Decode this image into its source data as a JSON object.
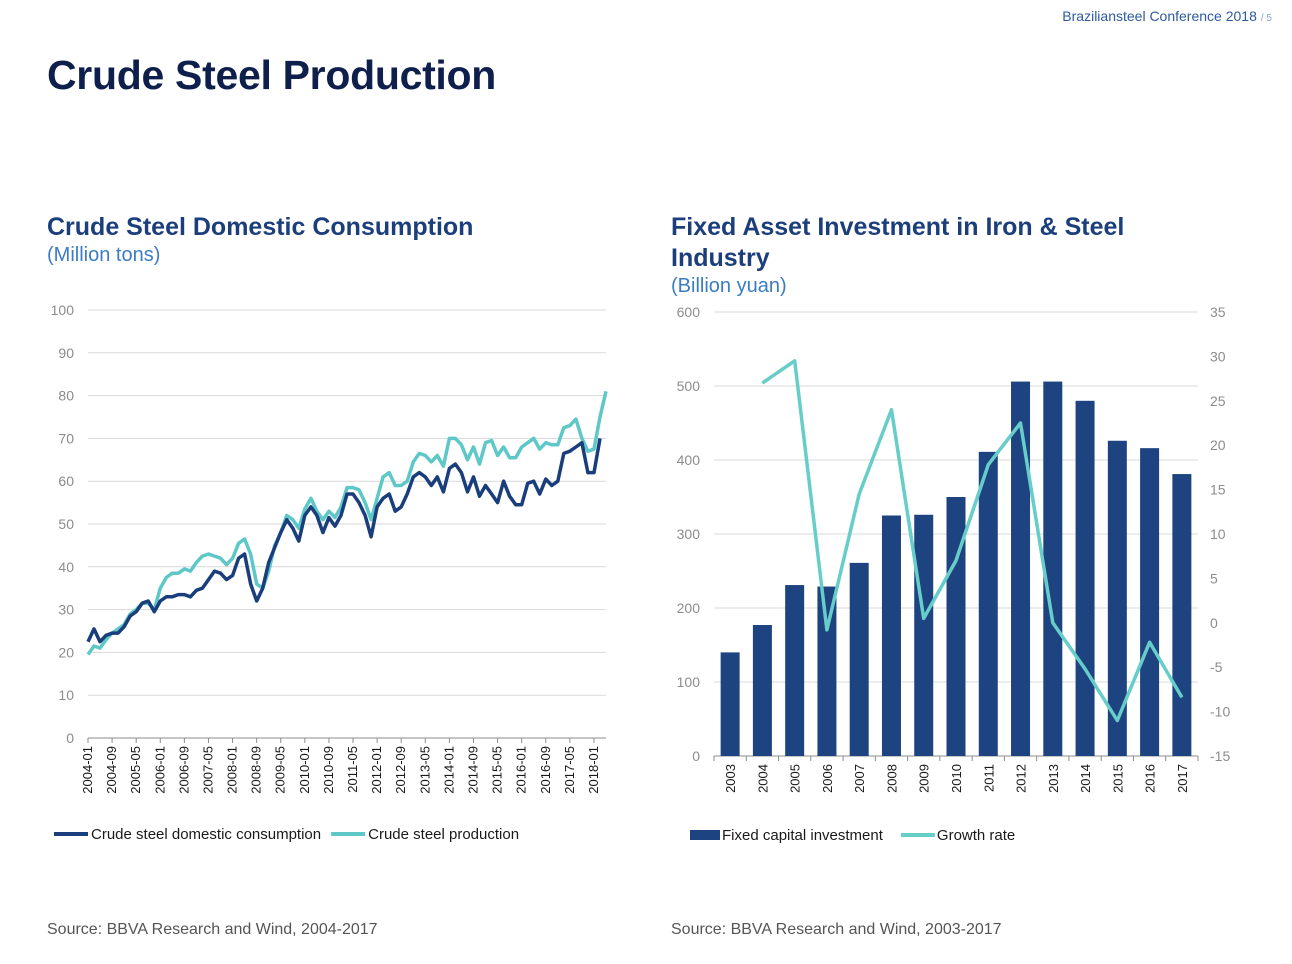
{
  "header": {
    "conference": "Braziliansteel Conference 2018",
    "page_mark": "/ 5"
  },
  "page_title": "Crude Steel Production",
  "chart_data": [
    {
      "type": "line",
      "title": "Crude Steel Domestic Consumption",
      "subtitle": "(Million tons)",
      "source": "Source: BBVA Research and Wind, 2004-2017",
      "ylim": [
        0,
        100
      ],
      "yticks": [
        0,
        10,
        20,
        30,
        40,
        50,
        60,
        70,
        80,
        90,
        100
      ],
      "xlim": [
        "2004-01",
        "2018-05"
      ],
      "xtick_labels": [
        "2004-01",
        "2004-09",
        "2005-05",
        "2006-01",
        "2006-09",
        "2007-05",
        "2008-01",
        "2008-09",
        "2009-05",
        "2010-01",
        "2010-09",
        "2011-05",
        "2012-01",
        "2012-09",
        "2013-05",
        "2014-01",
        "2014-09",
        "2015-05",
        "2016-01",
        "2016-09",
        "2017-05",
        "2018-01"
      ],
      "grid": true,
      "legend_position": "bottom",
      "series": [
        {
          "name": "Crude steel domestic consumption",
          "color": "#1a3d7c",
          "x": [
            "2004-01",
            "2004-03",
            "2004-05",
            "2004-07",
            "2004-09",
            "2004-11",
            "2005-01",
            "2005-03",
            "2005-05",
            "2005-07",
            "2005-09",
            "2005-11",
            "2006-01",
            "2006-03",
            "2006-05",
            "2006-07",
            "2006-09",
            "2006-11",
            "2007-01",
            "2007-03",
            "2007-05",
            "2007-07",
            "2007-09",
            "2007-11",
            "2008-01",
            "2008-03",
            "2008-05",
            "2008-07",
            "2008-09",
            "2008-11",
            "2009-01",
            "2009-03",
            "2009-05",
            "2009-07",
            "2009-09",
            "2009-11",
            "2010-01",
            "2010-03",
            "2010-05",
            "2010-07",
            "2010-09",
            "2010-11",
            "2011-01",
            "2011-03",
            "2011-05",
            "2011-07",
            "2011-09",
            "2011-11",
            "2012-01",
            "2012-03",
            "2012-05",
            "2012-07",
            "2012-09",
            "2012-11",
            "2013-01",
            "2013-03",
            "2013-05",
            "2013-07",
            "2013-09",
            "2013-11",
            "2014-01",
            "2014-03",
            "2014-05",
            "2014-07",
            "2014-09",
            "2014-11",
            "2015-01",
            "2015-03",
            "2015-05",
            "2015-07",
            "2015-09",
            "2015-11",
            "2016-01",
            "2016-03",
            "2016-05",
            "2016-07",
            "2016-09",
            "2016-11",
            "2017-01",
            "2017-03",
            "2017-05",
            "2017-07",
            "2017-09",
            "2017-11",
            "2018-01",
            "2018-03"
          ],
          "values": [
            22.5,
            25.5,
            22.5,
            24.0,
            24.5,
            24.5,
            26.0,
            28.5,
            29.5,
            31.5,
            32.0,
            29.5,
            32.0,
            33.0,
            33.0,
            33.5,
            33.5,
            33.0,
            34.5,
            35.0,
            37.0,
            39.0,
            38.5,
            37.0,
            38.0,
            42.0,
            43.0,
            36.0,
            32.0,
            35.0,
            41.0,
            44.5,
            48.0,
            51.0,
            49.0,
            46.0,
            52.0,
            54.0,
            52.0,
            48.0,
            51.5,
            49.5,
            52.0,
            57.0,
            57.0,
            55.0,
            52.0,
            47.0,
            54.0,
            56.0,
            57.0,
            53.0,
            54.0,
            57.0,
            61.0,
            62.0,
            61.0,
            59.0,
            61.0,
            57.5,
            63.0,
            64.0,
            62.0,
            57.5,
            61.0,
            56.5,
            59.0,
            57.0,
            55.0,
            60.0,
            56.5,
            54.5,
            54.5,
            59.5,
            60.0,
            57.0,
            60.5,
            59.0,
            60.0,
            66.5,
            67.0,
            68.0,
            69.0,
            62.0,
            62.0,
            70.0
          ]
        },
        {
          "name": "Crude steel production",
          "color": "#5ec8c8",
          "x": [
            "2004-01",
            "2004-03",
            "2004-05",
            "2004-07",
            "2004-09",
            "2004-11",
            "2005-01",
            "2005-03",
            "2005-05",
            "2005-07",
            "2005-09",
            "2005-11",
            "2006-01",
            "2006-03",
            "2006-05",
            "2006-07",
            "2006-09",
            "2006-11",
            "2007-01",
            "2007-03",
            "2007-05",
            "2007-07",
            "2007-09",
            "2007-11",
            "2008-01",
            "2008-03",
            "2008-05",
            "2008-07",
            "2008-09",
            "2008-11",
            "2009-01",
            "2009-03",
            "2009-05",
            "2009-07",
            "2009-09",
            "2009-11",
            "2010-01",
            "2010-03",
            "2010-05",
            "2010-07",
            "2010-09",
            "2010-11",
            "2011-01",
            "2011-03",
            "2011-05",
            "2011-07",
            "2011-09",
            "2011-11",
            "2012-01",
            "2012-03",
            "2012-05",
            "2012-07",
            "2012-09",
            "2012-11",
            "2013-01",
            "2013-03",
            "2013-05",
            "2013-07",
            "2013-09",
            "2013-11",
            "2014-01",
            "2014-03",
            "2014-05",
            "2014-07",
            "2014-09",
            "2014-11",
            "2015-01",
            "2015-03",
            "2015-05",
            "2015-07",
            "2015-09",
            "2015-11",
            "2016-01",
            "2016-03",
            "2016-05",
            "2016-07",
            "2016-09",
            "2016-11",
            "2017-01",
            "2017-03",
            "2017-05",
            "2017-07",
            "2017-09",
            "2017-11",
            "2018-01",
            "2018-03",
            "2018-05"
          ],
          "values": [
            19.5,
            21.5,
            21.0,
            23.0,
            24.5,
            25.5,
            26.5,
            29.0,
            30.0,
            31.5,
            31.5,
            30.0,
            35.0,
            37.5,
            38.5,
            38.5,
            39.5,
            39.0,
            41.0,
            42.5,
            43.0,
            42.5,
            42.0,
            40.5,
            42.0,
            45.5,
            46.5,
            43.0,
            36.0,
            35.0,
            39.0,
            45.0,
            48.0,
            52.0,
            51.0,
            49.0,
            53.5,
            56.0,
            53.0,
            51.0,
            53.0,
            51.5,
            54.0,
            58.5,
            58.5,
            58.0,
            55.0,
            51.0,
            56.0,
            61.0,
            62.0,
            59.0,
            59.0,
            60.0,
            64.5,
            66.5,
            66.0,
            64.5,
            66.0,
            63.5,
            70.0,
            70.0,
            68.5,
            65.0,
            68.0,
            64.0,
            69.0,
            69.5,
            66.0,
            68.0,
            65.5,
            65.5,
            68.0,
            69.0,
            70.0,
            67.5,
            69.0,
            68.5,
            68.5,
            72.5,
            73.0,
            74.5,
            70.0,
            67.0,
            67.5,
            75.0,
            81.0
          ]
        }
      ]
    },
    {
      "type": "bar",
      "title": "Fixed Asset Investment in Iron & Steel Industry",
      "subtitle": "(Billion yuan)",
      "source": "Source: BBVA Research and Wind, 2003-2017",
      "categories": [
        "2003",
        "2004",
        "2005",
        "2006",
        "2007",
        "2008",
        "2009",
        "2010",
        "2011",
        "2012",
        "2013",
        "2014",
        "2015",
        "2016",
        "2017"
      ],
      "ylim": [
        0,
        600
      ],
      "yticks": [
        0,
        100,
        200,
        300,
        400,
        500,
        600
      ],
      "y2lim": [
        -15,
        35
      ],
      "y2ticks": [
        -15,
        -10,
        -5,
        0,
        5,
        10,
        15,
        20,
        25,
        30,
        35
      ],
      "grid": true,
      "legend_position": "bottom",
      "series": [
        {
          "name": "Fixed capital investment",
          "type": "bar",
          "axis": "left",
          "color": "#1d4380",
          "values": [
            140,
            177,
            231,
            229,
            261,
            325,
            326,
            350,
            411,
            506,
            506,
            480,
            426,
            416,
            381
          ]
        },
        {
          "name": "Growth rate",
          "type": "line",
          "axis": "right",
          "color": "#66cdc8",
          "values": [
            null,
            27.0,
            29.5,
            -0.8,
            14.5,
            24.0,
            0.5,
            7.0,
            17.8,
            22.5,
            0.0,
            -5.2,
            -11.0,
            -2.2,
            -8.4
          ]
        }
      ]
    }
  ]
}
